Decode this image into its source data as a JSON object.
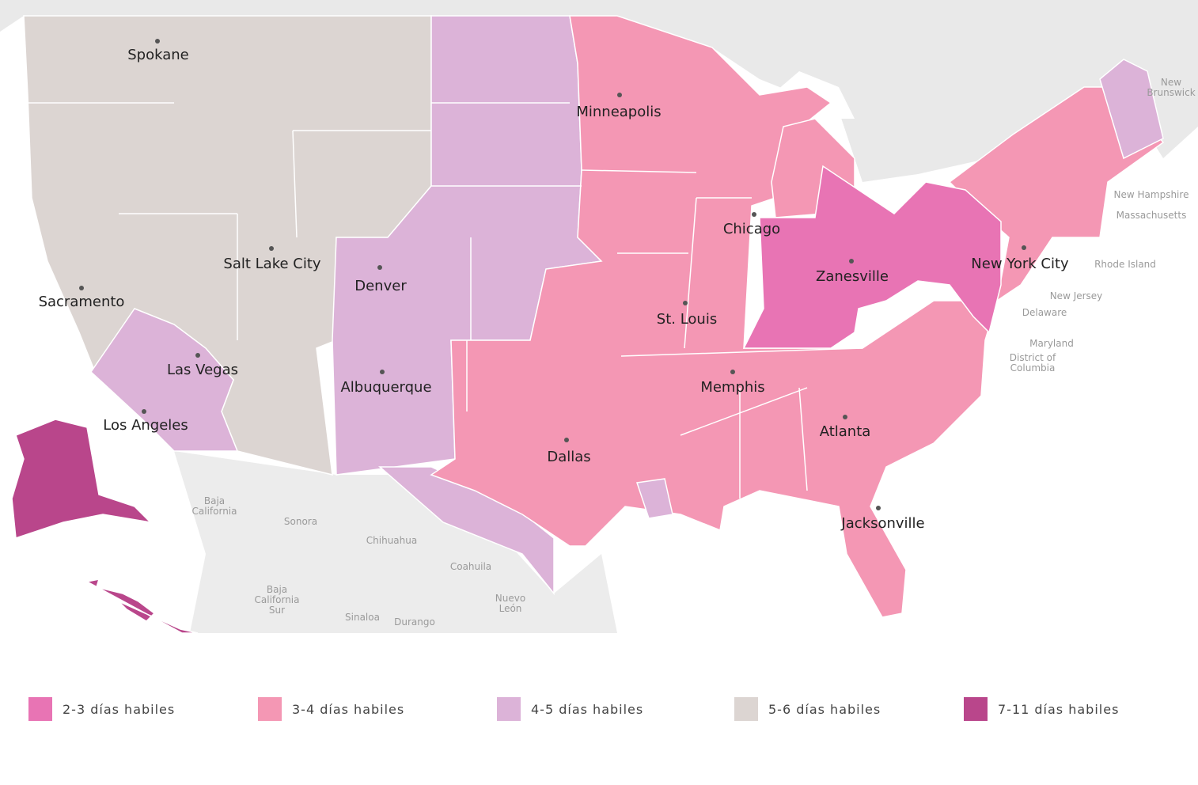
{
  "map": {
    "cities": [
      "Spokane",
      "Minneapolis",
      "Salt Lake City",
      "Denver",
      "Sacramento",
      "Chicago",
      "Zanesville",
      "New York City",
      "St. Louis",
      "Las Vegas",
      "Albuquerque",
      "Memphis",
      "Los Angeles",
      "Atlanta",
      "Dallas",
      "Jacksonville"
    ],
    "region_labels": [
      {
        "lines": [
          "New",
          "Brunswick"
        ]
      },
      {
        "lines": [
          "New Hampshire"
        ]
      },
      {
        "lines": [
          "Massachusetts"
        ]
      },
      {
        "lines": [
          "Rhode Island"
        ]
      },
      {
        "lines": [
          "New Jersey"
        ]
      },
      {
        "lines": [
          "Delaware"
        ]
      },
      {
        "lines": [
          "Maryland"
        ]
      },
      {
        "lines": [
          "District of",
          "Columbia"
        ]
      },
      {
        "lines": [
          "Baja",
          "California"
        ]
      },
      {
        "lines": [
          "Sonora"
        ]
      },
      {
        "lines": [
          "Chihuahua"
        ]
      },
      {
        "lines": [
          "Coahuila"
        ]
      },
      {
        "lines": [
          "Baja",
          "California",
          "Sur"
        ]
      },
      {
        "lines": [
          "Nuevo",
          "León"
        ]
      },
      {
        "lines": [
          "Sinaloa"
        ]
      },
      {
        "lines": [
          "Durango"
        ]
      }
    ],
    "legend": [
      {
        "label": "2-3 días habiles",
        "color": "#e874b4"
      },
      {
        "label": "3-4 días habiles",
        "color": "#f497b4"
      },
      {
        "label": "4-5 días habiles",
        "color": "#dcb3d8"
      },
      {
        "label": "5-6 días habiles",
        "color": "#dcd5d2"
      },
      {
        "label": "7-11 días habiles",
        "color": "#b9468b"
      }
    ]
  }
}
